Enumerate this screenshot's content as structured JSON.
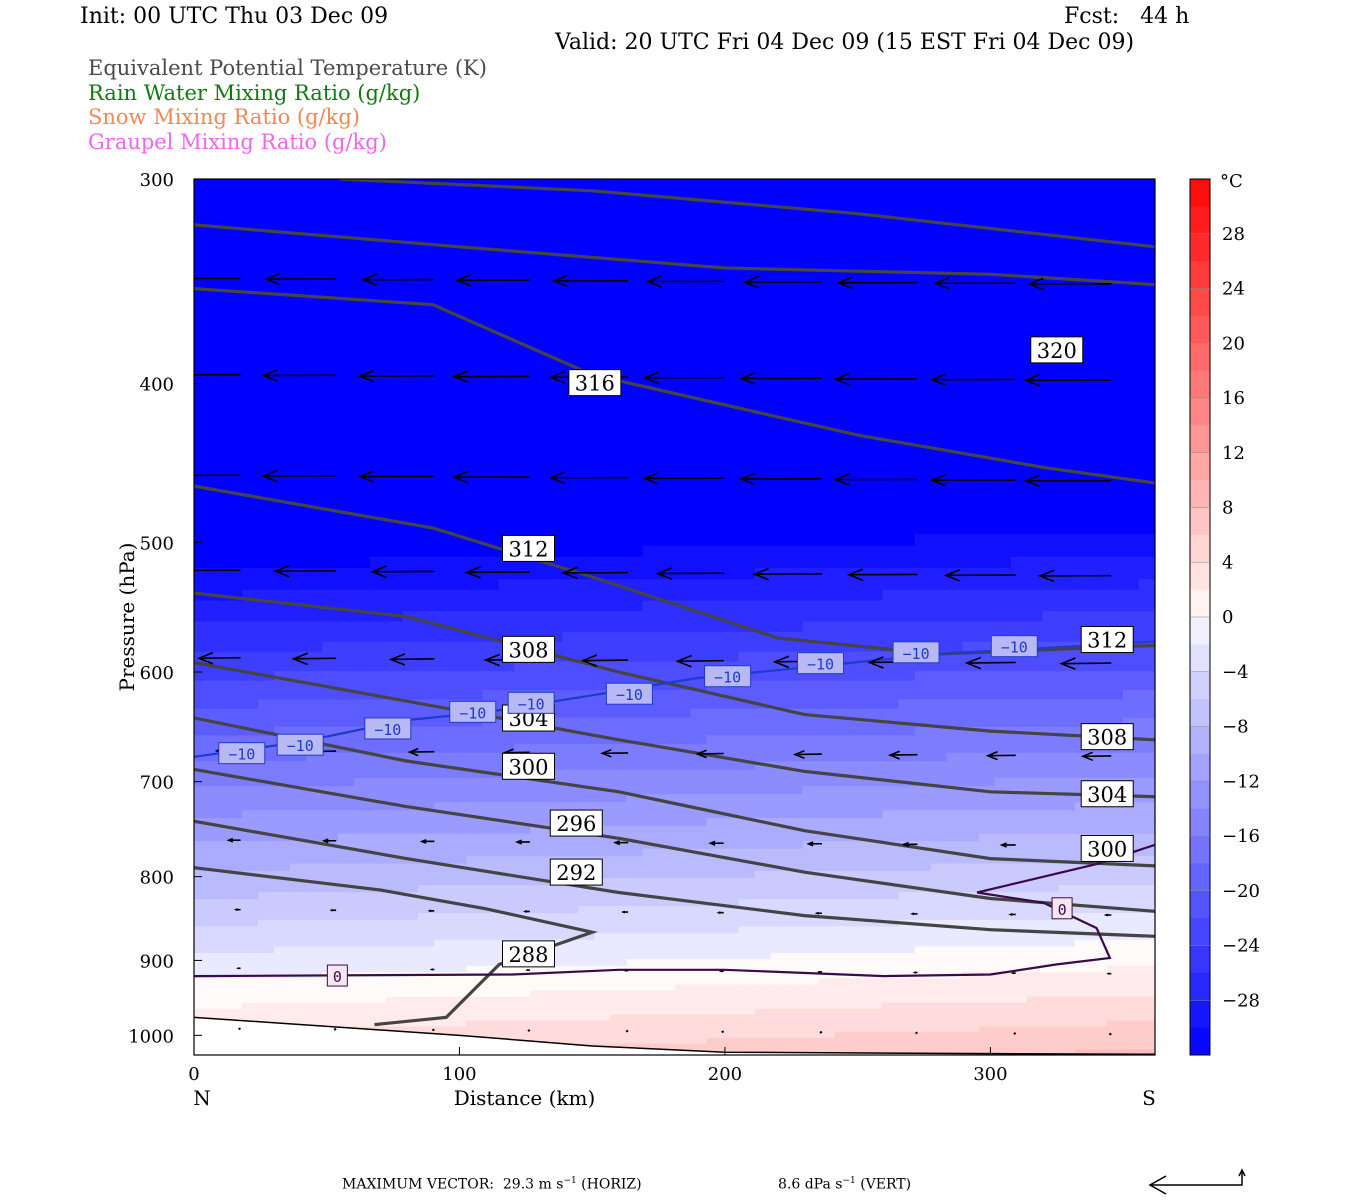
{
  "header": {
    "init": "Init: 00 UTC Thu 03 Dec 09",
    "fcst": "Fcst:   44 h",
    "valid": "Valid: 20 UTC Fri 04 Dec 09 (15 EST Fri 04 Dec 09)"
  },
  "legend": [
    {
      "label": "Equivalent Potential Temperature (K)",
      "color": "#4a4a4a"
    },
    {
      "label": "Rain Water Mixing Ratio (g/kg)",
      "color": "#107a10"
    },
    {
      "label": "Snow Mixing Ratio (g/kg)",
      "color": "#ee8855"
    },
    {
      "label": "Graupel Mixing Ratio (g/kg)",
      "color": "#ee66ee"
    }
  ],
  "chart_data": {
    "type": "cross-section",
    "xlabel": "Distance (km)",
    "ylabel": "Pressure (hPa)",
    "xlim": [
      0,
      362
    ],
    "ylim": [
      1028,
      300
    ],
    "y_scale": "log",
    "x_ticks": [
      0,
      100,
      200,
      300
    ],
    "y_ticks": [
      300,
      400,
      500,
      600,
      700,
      800,
      900,
      1000
    ],
    "x_end_labels": [
      "N",
      "S"
    ],
    "colorbar": {
      "unit": "°C",
      "ticks": [
        28,
        24,
        20,
        16,
        12,
        8,
        4,
        0,
        -4,
        -8,
        -12,
        -16,
        -20,
        -24,
        -28
      ],
      "tick_labels": [
        "28",
        "24",
        "20",
        "16",
        "12",
        "8",
        "4",
        "0",
        "−4",
        "−8",
        "−12",
        "−16",
        "−20",
        "−24",
        "−28"
      ],
      "min": -32,
      "max": 32,
      "step": 2
    },
    "theta_e_contours": [
      {
        "label": "320",
        "points": [
          [
            55,
            300
          ],
          [
            150,
            305
          ],
          [
            250,
            315
          ],
          [
            362,
            330
          ]
        ]
      },
      {
        "label": "316",
        "points": [
          [
            0,
            320
          ],
          [
            100,
            330
          ],
          [
            200,
            340
          ],
          [
            300,
            343
          ],
          [
            362,
            348
          ]
        ]
      },
      {
        "label": "316",
        "label2": "320",
        "points": [
          [
            0,
            350
          ],
          [
            90,
            358
          ],
          [
            150,
            395
          ],
          [
            250,
            430
          ],
          [
            320,
            450
          ],
          [
            362,
            460
          ]
        ]
      },
      {
        "label": "312",
        "points": [
          [
            0,
            462
          ],
          [
            90,
            490
          ],
          [
            150,
            525
          ],
          [
            220,
            572
          ],
          [
            280,
            585
          ],
          [
            362,
            578
          ]
        ]
      },
      {
        "label": "308",
        "points": [
          [
            0,
            537
          ],
          [
            80,
            555
          ],
          [
            160,
            600
          ],
          [
            230,
            637
          ],
          [
            300,
            652
          ],
          [
            362,
            660
          ]
        ]
      },
      {
        "label": "304",
        "points": [
          [
            0,
            592
          ],
          [
            80,
            625
          ],
          [
            160,
            660
          ],
          [
            230,
            690
          ],
          [
            300,
            710
          ],
          [
            362,
            715
          ]
        ]
      },
      {
        "label": "300",
        "points": [
          [
            0,
            640
          ],
          [
            80,
            680
          ],
          [
            160,
            710
          ],
          [
            230,
            750
          ],
          [
            300,
            780
          ],
          [
            362,
            788
          ]
        ]
      },
      {
        "label": "296",
        "points": [
          [
            0,
            688
          ],
          [
            80,
            725
          ],
          [
            160,
            758
          ],
          [
            230,
            795
          ],
          [
            300,
            825
          ],
          [
            362,
            840
          ]
        ]
      },
      {
        "label": "292",
        "points": [
          [
            0,
            740
          ],
          [
            80,
            780
          ],
          [
            160,
            818
          ],
          [
            230,
            845
          ],
          [
            300,
            862
          ],
          [
            362,
            870
          ]
        ]
      },
      {
        "label": "288",
        "points": [
          [
            0,
            790
          ],
          [
            70,
            815
          ],
          [
            110,
            837
          ],
          [
            150,
            865
          ],
          [
            115,
            905
          ],
          [
            95,
            975
          ],
          [
            68,
            985
          ]
        ]
      }
    ],
    "theta_e_labels": [
      {
        "text": "320",
        "x": 325,
        "p": 382
      },
      {
        "text": "316",
        "x": 151,
        "p": 400
      },
      {
        "text": "312",
        "x": 126,
        "p": 505
      },
      {
        "text": "312",
        "x": 344,
        "p": 574
      },
      {
        "text": "308",
        "x": 126,
        "p": 582
      },
      {
        "text": "308",
        "x": 344,
        "p": 658
      },
      {
        "text": "304",
        "x": 126,
        "p": 641
      },
      {
        "text": "304",
        "x": 344,
        "p": 713
      },
      {
        "text": "300",
        "x": 126,
        "p": 686
      },
      {
        "text": "300",
        "x": 344,
        "p": 770
      },
      {
        "text": "296",
        "x": 144,
        "p": 743
      },
      {
        "text": "292",
        "x": 144,
        "p": 796
      },
      {
        "text": "288",
        "x": 126,
        "p": 893
      }
    ],
    "isotherm_minus10": {
      "points": [
        [
          0,
          676
        ],
        [
          40,
          662
        ],
        [
          80,
          642
        ],
        [
          110,
          635
        ],
        [
          150,
          620
        ],
        [
          190,
          605
        ],
        [
          240,
          594
        ],
        [
          280,
          585
        ],
        [
          362,
          575
        ]
      ],
      "labels": [
        {
          "x": 18,
          "p": 673
        },
        {
          "x": 40,
          "p": 665
        },
        {
          "x": 73,
          "p": 650
        },
        {
          "x": 105,
          "p": 635
        },
        {
          "x": 127,
          "p": 627
        },
        {
          "x": 164,
          "p": 619
        },
        {
          "x": 201,
          "p": 604
        },
        {
          "x": 236,
          "p": 593
        },
        {
          "x": 272,
          "p": 584
        },
        {
          "x": 309,
          "p": 579
        }
      ],
      "text": "−10"
    },
    "isotherm_zero": {
      "points": [
        [
          0,
          920
        ],
        [
          120,
          918
        ],
        [
          160,
          912
        ],
        [
          200,
          912
        ],
        [
          260,
          920
        ],
        [
          300,
          918
        ],
        [
          325,
          905
        ],
        [
          345,
          897
        ],
        [
          340,
          860
        ],
        [
          320,
          830
        ],
        [
          295,
          818
        ],
        [
          340,
          786
        ],
        [
          362,
          765
        ]
      ],
      "labels": [
        {
          "x": 54,
          "p": 920
        },
        {
          "x": 327,
          "p": 837
        }
      ],
      "text": "0"
    },
    "wind_vectors": [
      {
        "p": 345,
        "u": -23,
        "w": 0.1
      },
      {
        "p": 395,
        "u": -24,
        "w": 0.2
      },
      {
        "p": 455,
        "u": -24,
        "w": 0.1
      },
      {
        "p": 520,
        "u": -20,
        "w": 0.3
      },
      {
        "p": 588,
        "u": -14,
        "w": 0.6
      },
      {
        "p": 670,
        "u": -8,
        "w": 0.4
      },
      {
        "p": 760,
        "u": -4,
        "w": 0.1
      },
      {
        "p": 838,
        "u": -1.5,
        "w": 0
      },
      {
        "p": 910,
        "u": -0.8,
        "w": 0
      },
      {
        "p": 990,
        "u": -0.3,
        "w": 0
      }
    ],
    "topography_p": [
      [
        0,
        975
      ],
      [
        100,
        1000
      ],
      [
        150,
        1015
      ],
      [
        200,
        1024
      ],
      [
        300,
        1026
      ],
      [
        362,
        1027
      ]
    ],
    "max_vector": {
      "text": "MAXIMUM VECTOR:",
      "horiz_value": "29.3 m s",
      "horiz_unit": "(HORIZ)",
      "vert_value": "8.6 dPa s",
      "vert_unit": "(VERT)",
      "exponent": "−1"
    }
  }
}
